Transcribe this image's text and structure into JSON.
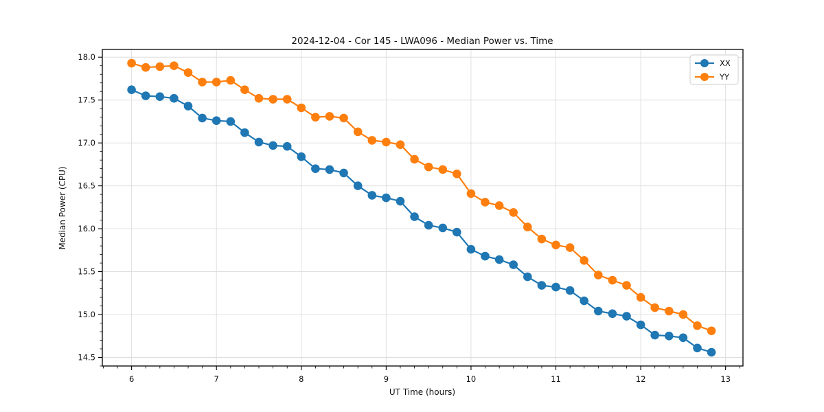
{
  "chart_data": {
    "type": "line",
    "title": "2024-12-04 - Cor 145 - LWA096 - Median Power vs. Time",
    "xlabel": "UT Time (hours)",
    "ylabel": "Median Power (CPU)",
    "xlim": [
      5.655,
      13.205
    ],
    "ylim": [
      14.4,
      18.09
    ],
    "grid": true,
    "legend_position": "upper right",
    "xticks": {
      "values": [
        6,
        7,
        8,
        9,
        10,
        11,
        12,
        13
      ],
      "labels": [
        "6",
        "7",
        "8",
        "9",
        "10",
        "11",
        "12",
        "13"
      ]
    },
    "yticks": {
      "values": [
        14.5,
        15.0,
        15.5,
        16.0,
        16.5,
        17.0,
        17.5,
        18.0
      ],
      "labels": [
        "14.5",
        "15.0",
        "15.5",
        "16.0",
        "16.5",
        "17.0",
        "17.5",
        "18.0"
      ]
    },
    "minor_tick_step_x": 0.16667,
    "minor_tick_step_y": 0.1,
    "x": [
      6.0,
      6.1667,
      6.3333,
      6.5,
      6.6667,
      6.8333,
      7.0,
      7.1667,
      7.3333,
      7.5,
      7.6667,
      7.8333,
      8.0,
      8.1667,
      8.3333,
      8.5,
      8.6667,
      8.8333,
      9.0,
      9.1667,
      9.3333,
      9.5,
      9.6667,
      9.8333,
      10.0,
      10.1667,
      10.3333,
      10.5,
      10.6667,
      10.8333,
      11.0,
      11.1667,
      11.3333,
      11.5,
      11.6667,
      11.8333,
      12.0,
      12.1667,
      12.3333,
      12.5,
      12.6667,
      12.8333
    ],
    "series": [
      {
        "name": "XX",
        "color": "#1f77b4",
        "marker": "circle",
        "values": [
          17.62,
          17.55,
          17.54,
          17.52,
          17.43,
          17.29,
          17.26,
          17.25,
          17.12,
          17.01,
          16.97,
          16.96,
          16.84,
          16.7,
          16.69,
          16.65,
          16.5,
          16.39,
          16.36,
          16.32,
          16.14,
          16.04,
          16.01,
          15.96,
          15.76,
          15.68,
          15.64,
          15.58,
          15.44,
          15.34,
          15.32,
          15.28,
          15.16,
          15.04,
          15.01,
          14.98,
          14.88,
          14.76,
          14.75,
          14.73,
          14.61,
          14.56
        ]
      },
      {
        "name": "YY",
        "color": "#ff7f0e",
        "marker": "circle",
        "values": [
          17.93,
          17.88,
          17.89,
          17.9,
          17.82,
          17.71,
          17.71,
          17.73,
          17.62,
          17.52,
          17.51,
          17.51,
          17.41,
          17.3,
          17.31,
          17.29,
          17.13,
          17.03,
          17.01,
          16.98,
          16.81,
          16.72,
          16.69,
          16.64,
          16.41,
          16.31,
          16.27,
          16.19,
          16.02,
          15.88,
          15.81,
          15.78,
          15.63,
          15.46,
          15.4,
          15.34,
          15.2,
          15.08,
          15.04,
          15.0,
          14.87,
          14.81
        ]
      }
    ],
    "style": {
      "grid_color": "#dcdcdc",
      "spine_color": "#000000",
      "tick_color": "#000000",
      "background": "#ffffff",
      "legend_border": "#cccccc"
    }
  }
}
